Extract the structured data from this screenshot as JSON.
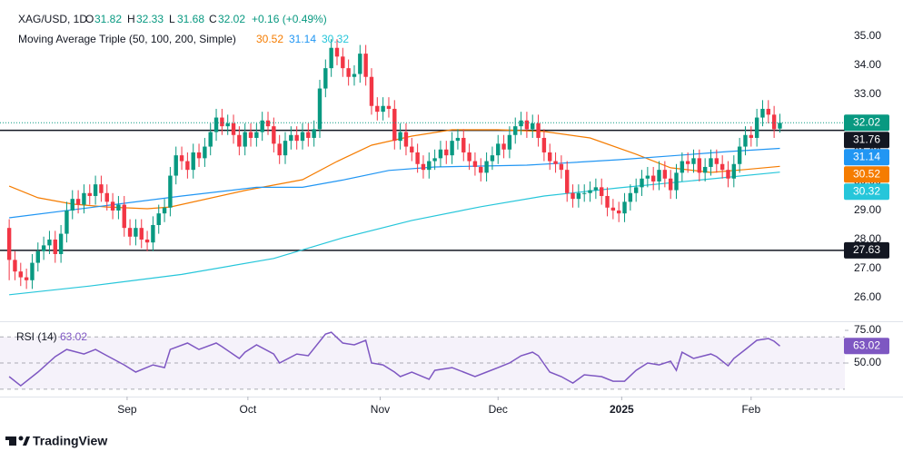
{
  "header": {
    "symbol": "XAG/USD, 1D",
    "ohlc_labels": [
      "O",
      "H",
      "L",
      "C"
    ],
    "change": "+0.16 (+0.49%)"
  },
  "chart_data": [
    {
      "type": "candlestick",
      "indicator_label": "Moving Average Triple (50, 100, 200, Simple)",
      "up_color": "#089981",
      "down_color": "#f23645",
      "open": [
        28.4,
        27.3,
        26.9,
        26.7,
        26.6,
        27.2,
        27.6,
        27.8,
        28.0,
        27.5,
        28.2,
        29.0,
        29.4,
        29.2,
        29.6,
        29.5,
        29.9,
        29.6,
        29.3,
        29.0,
        29.2,
        28.4,
        28.1,
        28.4,
        28.0,
        27.9,
        28.5,
        28.9,
        29.1,
        30.2,
        30.9,
        30.7,
        30.4,
        31.0,
        30.8,
        31.2,
        31.7,
        32.2,
        31.9,
        32.0,
        31.6,
        31.2,
        31.7,
        31.5,
        31.7,
        32.1,
        31.9,
        31.3,
        30.9,
        31.4,
        31.6,
        31.4,
        31.7,
        31.5,
        31.8,
        33.2,
        33.9,
        34.6,
        34.3,
        33.9,
        33.6,
        33.7,
        34.4,
        33.6,
        32.6,
        32.4,
        32.6,
        32.5,
        31.4,
        31.7,
        31.2,
        31.0,
        30.6,
        30.4,
        30.7,
        30.8,
        31.1,
        30.9,
        31.4,
        31.5,
        31.0,
        30.7,
        30.5,
        30.3,
        30.7,
        30.9,
        31.3,
        31.1,
        31.6,
        31.9,
        32.1,
        31.8,
        32.0,
        31.5,
        31.0,
        30.7,
        30.6,
        30.4,
        29.6,
        29.4,
        29.6,
        29.6,
        29.7,
        29.8,
        29.5,
        29.1,
        29.0,
        28.9,
        29.3,
        29.6,
        29.8,
        30.1,
        30.2,
        30.0,
        30.4,
        30.1,
        29.7,
        30.3,
        30.7,
        30.6,
        30.8,
        30.3,
        30.5,
        30.8,
        30.6,
        30.4,
        30.1,
        30.6,
        31.2,
        31.6,
        31.5,
        32.2,
        32.5,
        32.3,
        31.82
      ],
      "high": [
        28.7,
        27.6,
        27.2,
        27.0,
        27.5,
        27.9,
        28.1,
        28.3,
        28.3,
        28.5,
        29.3,
        29.7,
        29.7,
        29.9,
        29.9,
        30.2,
        30.2,
        29.9,
        29.6,
        29.5,
        29.5,
        28.7,
        28.7,
        28.7,
        28.3,
        28.8,
        29.2,
        29.4,
        30.5,
        31.2,
        31.2,
        31.0,
        31.3,
        31.3,
        31.5,
        32.0,
        32.5,
        32.5,
        32.3,
        32.3,
        31.9,
        32.0,
        32.0,
        32.0,
        32.4,
        32.4,
        32.2,
        31.6,
        31.7,
        31.9,
        31.9,
        32.0,
        32.0,
        32.1,
        33.5,
        34.2,
        34.9,
        34.9,
        34.6,
        34.2,
        34.0,
        34.7,
        34.7,
        33.9,
        32.9,
        32.9,
        32.9,
        32.8,
        32.0,
        32.0,
        31.5,
        31.3,
        30.9,
        31.0,
        31.1,
        31.4,
        31.4,
        31.7,
        31.8,
        31.8,
        31.3,
        31.0,
        30.8,
        31.0,
        31.2,
        31.6,
        31.6,
        31.9,
        32.2,
        32.4,
        32.4,
        32.3,
        32.3,
        31.8,
        31.3,
        31.0,
        30.9,
        30.7,
        29.9,
        29.9,
        29.9,
        30.0,
        30.1,
        30.1,
        29.8,
        29.4,
        29.3,
        29.6,
        29.9,
        30.1,
        30.4,
        30.5,
        30.5,
        30.7,
        30.7,
        30.4,
        30.6,
        31.0,
        31.0,
        31.1,
        31.1,
        30.8,
        31.1,
        31.1,
        30.9,
        30.7,
        30.9,
        31.5,
        31.9,
        31.9,
        32.5,
        32.8,
        32.8,
        32.6,
        32.33
      ],
      "low": [
        26.6,
        26.6,
        26.4,
        26.3,
        26.3,
        26.9,
        27.3,
        27.5,
        27.2,
        27.2,
        27.9,
        28.7,
        28.9,
        28.9,
        29.2,
        29.2,
        29.3,
        29.0,
        28.7,
        28.7,
        28.1,
        27.8,
        27.8,
        27.7,
        27.6,
        27.6,
        28.2,
        28.6,
        28.8,
        29.9,
        30.4,
        30.1,
        30.1,
        30.5,
        30.5,
        30.9,
        31.4,
        31.6,
        31.6,
        31.3,
        30.9,
        30.9,
        31.2,
        31.2,
        31.4,
        31.6,
        31.0,
        30.6,
        30.6,
        31.1,
        31.1,
        31.1,
        31.2,
        31.2,
        31.5,
        32.9,
        33.6,
        34.0,
        33.6,
        33.3,
        33.3,
        33.4,
        33.3,
        32.3,
        32.1,
        32.1,
        32.2,
        31.1,
        31.1,
        30.9,
        30.7,
        30.3,
        30.1,
        30.1,
        30.4,
        30.5,
        30.6,
        30.6,
        31.1,
        30.7,
        30.4,
        30.2,
        30.0,
        30.0,
        30.4,
        30.6,
        30.8,
        30.8,
        31.3,
        31.6,
        31.5,
        31.5,
        31.2,
        30.7,
        30.4,
        30.3,
        30.1,
        29.3,
        29.1,
        29.1,
        29.3,
        29.3,
        29.4,
        29.2,
        28.8,
        28.7,
        28.6,
        28.6,
        29.0,
        29.3,
        29.5,
        29.8,
        29.7,
        29.7,
        29.8,
        29.4,
        29.4,
        30.0,
        30.3,
        30.3,
        30.0,
        30.0,
        30.2,
        30.3,
        30.1,
        29.8,
        29.8,
        30.3,
        30.9,
        31.2,
        31.2,
        31.9,
        32.0,
        31.5,
        31.68
      ],
      "close": [
        27.3,
        26.9,
        26.7,
        26.6,
        27.2,
        27.6,
        27.8,
        28.0,
        27.5,
        28.2,
        29.0,
        29.4,
        29.2,
        29.6,
        29.5,
        29.9,
        29.6,
        29.3,
        29.0,
        29.2,
        28.4,
        28.1,
        28.4,
        28.0,
        27.9,
        28.5,
        28.9,
        29.1,
        30.2,
        30.9,
        30.7,
        30.4,
        31.0,
        30.8,
        31.2,
        31.7,
        32.2,
        31.9,
        32.0,
        31.6,
        31.2,
        31.7,
        31.5,
        31.7,
        32.1,
        31.9,
        31.3,
        30.9,
        31.4,
        31.6,
        31.4,
        31.7,
        31.5,
        31.8,
        33.2,
        33.9,
        34.6,
        34.3,
        33.9,
        33.6,
        33.7,
        34.4,
        33.6,
        32.6,
        32.4,
        32.6,
        32.5,
        31.4,
        31.7,
        31.2,
        31.0,
        30.6,
        30.4,
        30.7,
        30.8,
        31.1,
        30.9,
        31.4,
        31.5,
        31.0,
        30.7,
        30.5,
        30.3,
        30.7,
        30.9,
        31.3,
        31.1,
        31.6,
        31.9,
        32.1,
        31.8,
        32.0,
        31.5,
        31.0,
        30.7,
        30.6,
        30.4,
        29.6,
        29.4,
        29.6,
        29.6,
        29.7,
        29.8,
        29.5,
        29.1,
        29.0,
        28.9,
        29.3,
        29.6,
        29.8,
        30.1,
        30.2,
        30.0,
        30.4,
        30.1,
        29.7,
        30.3,
        30.7,
        30.6,
        30.8,
        30.3,
        30.5,
        30.8,
        30.6,
        30.4,
        30.1,
        30.6,
        31.2,
        31.6,
        31.5,
        32.2,
        32.5,
        32.3,
        31.8,
        32.02
      ],
      "moving_averages": [
        {
          "color": "#f57c00",
          "x": [
            0,
            5,
            11,
            17,
            24,
            28,
            41,
            51,
            57,
            63,
            70,
            77,
            85,
            93,
            101,
            109,
            115,
            122,
            128,
            134
          ],
          "values": [
            29.84,
            29.44,
            29.22,
            29.12,
            29.06,
            29.12,
            29.69,
            30.06,
            30.69,
            31.25,
            31.56,
            31.78,
            31.78,
            31.72,
            31.5,
            30.94,
            30.47,
            30.31,
            30.41,
            30.52
          ]
        },
        {
          "color": "#2196f3",
          "x": [
            0,
            14,
            30,
            43,
            51,
            58,
            66,
            74,
            82,
            90,
            96,
            106,
            115,
            125,
            134
          ],
          "values": [
            28.75,
            29.1,
            29.5,
            29.8,
            29.8,
            30.05,
            30.38,
            30.5,
            30.53,
            30.56,
            30.63,
            30.75,
            30.88,
            31.03,
            31.14
          ]
        },
        {
          "color": "#26c6da",
          "x": [
            0,
            14,
            30,
            46,
            58,
            70,
            82,
            93,
            106,
            119,
            134
          ],
          "values": [
            26.1,
            26.4,
            26.8,
            27.35,
            28.06,
            28.66,
            29.13,
            29.5,
            29.78,
            30.03,
            30.32
          ]
        }
      ],
      "hlines": [
        31.76,
        27.63
      ],
      "hline_color": "#131722",
      "grid": false,
      "ylim": [
        25.25,
        35.31
      ],
      "yticks": [
        {
          "value": 26,
          "label": "26.00"
        },
        {
          "value": 27,
          "label": "27.00"
        },
        {
          "value": 28,
          "label": "28.00"
        },
        {
          "value": 29,
          "label": "29.00"
        },
        {
          "value": 30,
          "label": "30.00"
        },
        {
          "value": 31,
          "label": "31.00"
        },
        {
          "value": 32,
          "label": "32.00"
        },
        {
          "value": 33,
          "label": "33.00"
        },
        {
          "value": 34,
          "label": "34.00"
        },
        {
          "value": 35,
          "label": "35.00"
        }
      ],
      "xlim": [
        -1.6,
        145.3
      ],
      "xticks": [
        {
          "value": 20.5,
          "label": "Sep"
        },
        {
          "value": 41.5,
          "label": "Oct"
        },
        {
          "value": 64.5,
          "label": "Nov"
        },
        {
          "value": 85,
          "label": "Dec"
        },
        {
          "value": 106.5,
          "label": "2025"
        },
        {
          "value": 129,
          "label": "Feb"
        }
      ]
    },
    {
      "type": "line",
      "title": "RSI (14)",
      "color": "#7e57c2",
      "x": [
        0,
        2,
        5,
        8,
        10,
        13,
        15,
        17,
        20,
        22,
        25,
        27,
        28,
        31,
        33,
        36,
        37,
        40,
        41,
        43,
        46,
        47,
        50,
        52,
        55,
        56,
        58,
        60,
        62,
        63,
        65,
        67,
        68,
        70,
        73,
        74,
        77,
        79,
        81,
        83,
        85,
        87,
        89,
        91,
        92,
        94,
        96,
        98,
        100,
        103,
        105,
        107,
        109,
        111,
        113,
        115,
        116,
        117,
        119,
        122,
        123,
        125,
        126,
        128,
        130,
        132,
        133,
        134
      ],
      "values": [
        39.6,
        32.6,
        43.1,
        54.9,
        60.4,
        56.9,
        60.4,
        55.6,
        48.6,
        43.1,
        48.6,
        46.5,
        60.4,
        65.3,
        60.4,
        65.3,
        62.5,
        53.5,
        58.3,
        63.9,
        56.9,
        50,
        56.9,
        55.6,
        72.2,
        73.6,
        65.3,
        63.9,
        67.4,
        50,
        48.6,
        43.1,
        39.6,
        43.1,
        37.5,
        44.4,
        46.5,
        43.1,
        39.6,
        43.1,
        46.5,
        50,
        55.6,
        58.3,
        55.6,
        43.1,
        39.6,
        34.7,
        41,
        39.6,
        36.1,
        36.1,
        44.4,
        50,
        48.6,
        51.4,
        44.4,
        58.3,
        53.5,
        56.9,
        54.9,
        47.9,
        53.5,
        60.4,
        67.4,
        68.8,
        66.7,
        63.02
      ],
      "bands": [
        70,
        50,
        30
      ],
      "xlim": [
        -1.6,
        145.3
      ],
      "ylim": [
        27.8,
        79.2
      ],
      "yticks": [
        {
          "value": 50,
          "label": "50.00"
        },
        {
          "value": 75,
          "label": "75.00"
        }
      ]
    }
  ],
  "footer": {
    "brand": "TradingView"
  }
}
